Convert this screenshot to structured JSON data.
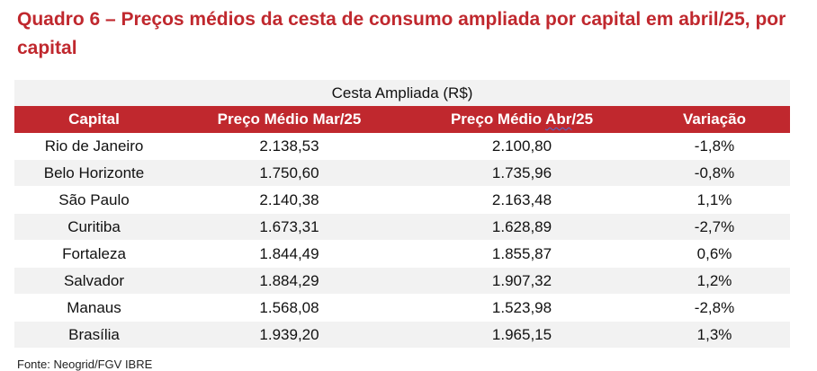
{
  "title": "Quadro 6 – Preços médios da cesta de consumo ampliada por capital em abril/25, por capital",
  "table": {
    "group_header": "Cesta Ampliada (R$)",
    "columns": {
      "capital": "Capital",
      "mar": "Preço Médio Mar/25",
      "abr_prefix": "Preço Médio ",
      "abr_squiggle": "Abr",
      "abr_suffix": "/25",
      "variacao": "Variação"
    },
    "rows": [
      {
        "capital": "Rio de Janeiro",
        "mar": "2.138,53",
        "abr": "2.100,80",
        "variacao": "-1,8%"
      },
      {
        "capital": "Belo Horizonte",
        "mar": "1.750,60",
        "abr": "1.735,96",
        "variacao": "-0,8%"
      },
      {
        "capital": "São Paulo",
        "mar": "2.140,38",
        "abr": "2.163,48",
        "variacao": "1,1%"
      },
      {
        "capital": "Curitiba",
        "mar": "1.673,31",
        "abr": "1.628,89",
        "variacao": "-2,7%"
      },
      {
        "capital": "Fortaleza",
        "mar": "1.844,49",
        "abr": "1.855,87",
        "variacao": "0,6%"
      },
      {
        "capital": "Salvador",
        "mar": "1.884,29",
        "abr": "1.907,32",
        "variacao": "1,2%"
      },
      {
        "capital": "Manaus",
        "mar": "1.568,08",
        "abr": "1.523,98",
        "variacao": "-2,8%"
      },
      {
        "capital": "Brasília",
        "mar": "1.939,20",
        "abr": "1.965,15",
        "variacao": "1,3%"
      }
    ]
  },
  "source": "Fonte: Neogrid/FGV IBRE",
  "colors": {
    "accent": "#c0282e",
    "stripe": "#f2f2f2"
  }
}
